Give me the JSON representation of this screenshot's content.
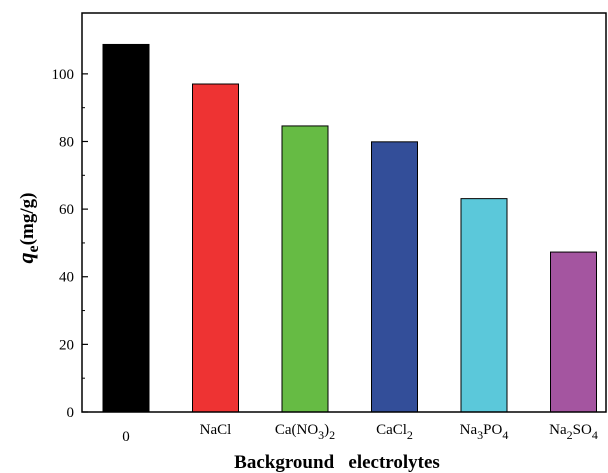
{
  "chart_data": {
    "type": "bar",
    "categories": [
      {
        "base": "0",
        "parts": []
      },
      {
        "base": "NaCl",
        "parts": []
      },
      {
        "base": "",
        "parts": [
          [
            "Ca(NO",
            ""
          ],
          [
            "3",
            "sub"
          ],
          [
            ")",
            ""
          ],
          [
            "2",
            "sub"
          ]
        ]
      },
      {
        "base": "",
        "parts": [
          [
            "CaCl",
            ""
          ],
          [
            "2",
            "sub"
          ]
        ]
      },
      {
        "base": "",
        "parts": [
          [
            "Na",
            ""
          ],
          [
            "3",
            "sub"
          ],
          [
            "PO",
            ""
          ],
          [
            "4",
            "sub"
          ]
        ]
      },
      {
        "base": "",
        "parts": [
          [
            "Na",
            ""
          ],
          [
            "2",
            "sub"
          ],
          [
            "SO",
            ""
          ],
          [
            "4",
            "sub"
          ]
        ]
      }
    ],
    "values": [
      108.7,
      97.0,
      84.6,
      79.9,
      63.1,
      47.3
    ],
    "colors": [
      "#000000",
      "#ee3333",
      "#66bb44",
      "#334e99",
      "#5bc8da",
      "#a455a0"
    ],
    "xlabel": "Background   electrolytes",
    "ylabel_main": "q",
    "ylabel_sub": "e",
    "ylabel_unit": "(mg/g)",
    "ylim": [
      0,
      118
    ],
    "yticks": [
      0,
      20,
      40,
      60,
      80,
      100
    ],
    "grid": false
  }
}
